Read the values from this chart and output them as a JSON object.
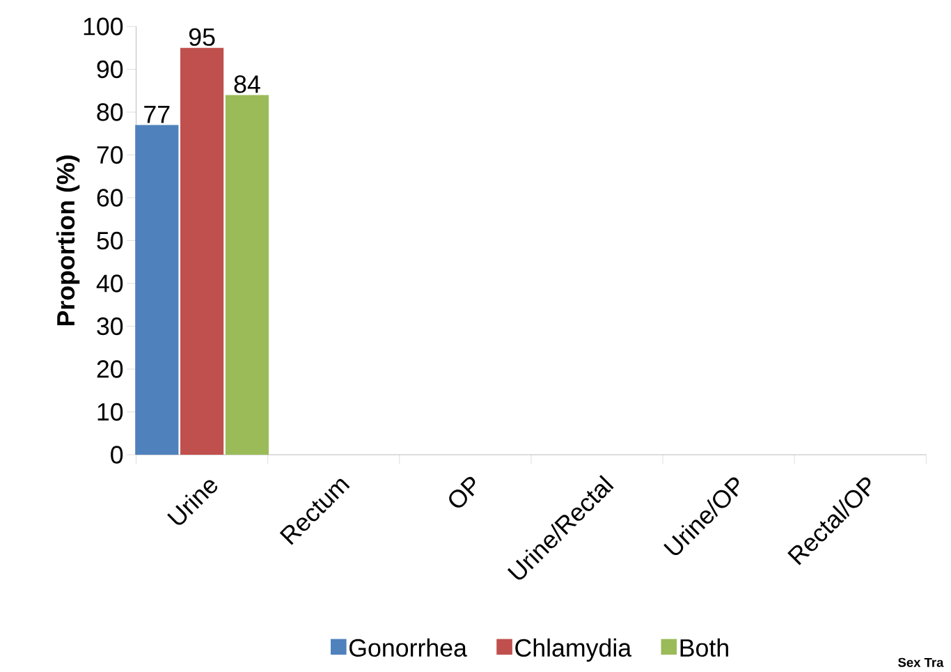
{
  "chart_data": {
    "type": "bar",
    "ylabel": "Proportion (%)",
    "categories": [
      "Urine",
      "Rectum",
      "OP",
      "Urine/Rectal",
      "Urine/OP",
      "Rectal/OP"
    ],
    "series": [
      {
        "name": "Gonorrhea",
        "color": "#4f81bd",
        "values": [
          77,
          null,
          null,
          null,
          null,
          null
        ]
      },
      {
        "name": "Chlamydia",
        "color": "#c0504d",
        "values": [
          95,
          null,
          null,
          null,
          null,
          null
        ]
      },
      {
        "name": "Both",
        "color": "#9bbb59",
        "values": [
          84,
          null,
          null,
          null,
          null,
          null
        ]
      }
    ],
    "ylim": [
      0,
      100
    ],
    "yticks": [
      0,
      10,
      20,
      30,
      40,
      50,
      60,
      70,
      80,
      90,
      100
    ],
    "data_labels": true,
    "legend": "bottom",
    "grid": false,
    "annotations": [
      "Sex Tra"
    ]
  }
}
